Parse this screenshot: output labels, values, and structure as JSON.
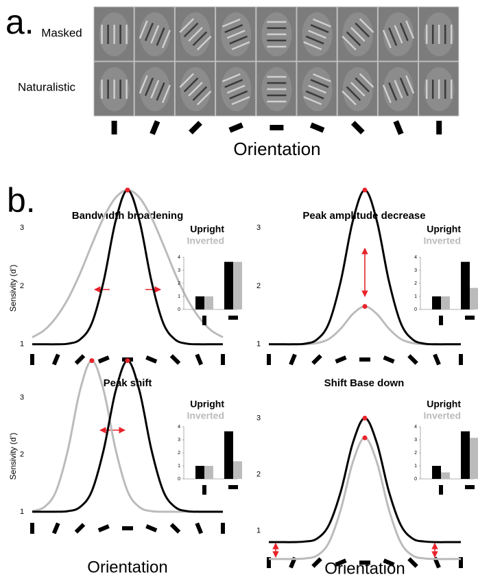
{
  "panel_a": {
    "label": "a.",
    "row_labels": [
      "Masked",
      "Naturalistic"
    ],
    "xlabel": "Orientation"
  },
  "panel_b": {
    "label": "b."
  },
  "chart_data": [
    {
      "type": "line",
      "title": "Bandwidth broadening",
      "ylabel": "Sensivity (d’)",
      "x": [
        0,
        11.25,
        22.5,
        33.75,
        45,
        56.25,
        67.5,
        78.75,
        90,
        101.25,
        112.5,
        123.75,
        135,
        146.25,
        157.5,
        168.75,
        180
      ],
      "xlim": [
        0,
        180
      ],
      "xticks": [
        0,
        22.5,
        45,
        67.5,
        90,
        112.5,
        135,
        157.5,
        180
      ],
      "ylim": [
        0.95,
        3.85
      ],
      "yticks": [
        1,
        2,
        3
      ],
      "series": [
        {
          "name": "Upright",
          "color": "#000000",
          "values": [
            1,
            1,
            1,
            1.01,
            1.08,
            1.36,
            2.09,
            3.12,
            3.65,
            3.12,
            2.09,
            1.36,
            1.08,
            1.01,
            1,
            1,
            1
          ]
        },
        {
          "name": "Inverted",
          "color": "#bbbbbb",
          "values": [
            1.12,
            1.24,
            1.46,
            1.78,
            2.21,
            2.71,
            3.18,
            3.52,
            3.65,
            3.52,
            3.18,
            2.71,
            2.21,
            1.78,
            1.46,
            1.24,
            1.12
          ]
        }
      ],
      "inset": {
        "type": "bar",
        "categories": [
          null,
          null
        ],
        "ylim": [
          0,
          4
        ],
        "yticks": [
          0,
          1,
          2,
          3,
          4
        ],
        "series": [
          {
            "name": "Upright",
            "color": "#000000",
            "values": [
              1,
              3.65
            ]
          },
          {
            "name": "Inverted",
            "color": "#bbbbbb",
            "values": [
              1,
              3.65
            ]
          }
        ]
      }
    },
    {
      "type": "line",
      "title": "Peak amplitude decrease",
      "x": [
        0,
        11.25,
        22.5,
        33.75,
        45,
        56.25,
        67.5,
        78.75,
        90,
        101.25,
        112.5,
        123.75,
        135,
        146.25,
        157.5,
        168.75,
        180
      ],
      "xlim": [
        0,
        180
      ],
      "xticks": [
        0,
        22.5,
        45,
        67.5,
        90,
        112.5,
        135,
        157.5,
        180
      ],
      "ylim": [
        0.95,
        3.85
      ],
      "yticks": [
        1,
        2,
        3
      ],
      "series": [
        {
          "name": "Upright",
          "color": "#000000",
          "values": [
            1,
            1,
            1,
            1.01,
            1.08,
            1.36,
            2.09,
            3.12,
            3.65,
            3.12,
            2.09,
            1.36,
            1.08,
            1.01,
            1,
            1,
            1
          ]
        },
        {
          "name": "Inverted",
          "color": "#bbbbbb",
          "values": [
            1,
            1,
            1,
            1,
            1.02,
            1.09,
            1.27,
            1.52,
            1.65,
            1.52,
            1.27,
            1.09,
            1.02,
            1,
            1,
            1,
            1
          ]
        }
      ],
      "inset": {
        "type": "bar",
        "categories": [
          null,
          null
        ],
        "ylim": [
          0,
          4
        ],
        "yticks": [
          0,
          1,
          2,
          3,
          4
        ],
        "series": [
          {
            "name": "Upright",
            "color": "#000000",
            "values": [
              1,
              3.65
            ]
          },
          {
            "name": "Inverted",
            "color": "#bbbbbb",
            "values": [
              1,
              1.65
            ]
          }
        ]
      }
    },
    {
      "type": "line",
      "title": "Peak shift",
      "ylabel": "Sensivity (d’)",
      "xlabel": "Orientation",
      "x": [
        0,
        11.25,
        22.5,
        33.75,
        45,
        56.25,
        67.5,
        78.75,
        90,
        101.25,
        112.5,
        123.75,
        135,
        146.25,
        157.5,
        168.75,
        180
      ],
      "xlim": [
        0,
        180
      ],
      "xticks": [
        0,
        22.5,
        45,
        67.5,
        90,
        112.5,
        135,
        157.5,
        180
      ],
      "ylim": [
        0.95,
        3.85
      ],
      "yticks": [
        1,
        2,
        3
      ],
      "series": [
        {
          "name": "Upright",
          "color": "#000000",
          "values": [
            1,
            1,
            1,
            1.01,
            1.08,
            1.36,
            2.09,
            3.12,
            3.65,
            3.12,
            2.09,
            1.36,
            1.08,
            1.01,
            1,
            1,
            1
          ]
        },
        {
          "name": "Inverted",
          "color": "#bbbbbb",
          "values": [
            1.01,
            1.08,
            1.36,
            2.09,
            3.12,
            3.65,
            3.12,
            2.09,
            1.36,
            1.08,
            1.01,
            1,
            1,
            1,
            1,
            1,
            1
          ]
        }
      ],
      "inset": {
        "type": "bar",
        "categories": [
          null,
          null
        ],
        "ylim": [
          0,
          4
        ],
        "yticks": [
          0,
          1,
          2,
          3,
          4
        ],
        "series": [
          {
            "name": "Upright",
            "color": "#000000",
            "values": [
              1,
              3.65
            ]
          },
          {
            "name": "Inverted",
            "color": "#bbbbbb",
            "values": [
              1,
              1.35
            ]
          }
        ]
      }
    },
    {
      "type": "line",
      "title": "Shift Base down",
      "xlabel": "Orientation",
      "x": [
        0,
        11.25,
        22.5,
        33.75,
        45,
        56.25,
        67.5,
        78.75,
        90,
        101.25,
        112.5,
        123.75,
        135,
        146.25,
        157.5,
        168.75,
        180
      ],
      "xlim": [
        0,
        180
      ],
      "xticks": [
        0,
        22.5,
        45,
        67.5,
        90,
        112.5,
        135,
        157.5,
        180
      ],
      "ylim": [
        0.4,
        3.2
      ],
      "yticks": [
        1,
        2,
        3
      ],
      "series": [
        {
          "name": "Upright",
          "color": "#000000",
          "values": [
            0.8,
            0.8,
            0.8,
            0.81,
            0.86,
            1.1,
            1.7,
            2.56,
            3.0,
            2.56,
            1.7,
            1.1,
            0.86,
            0.81,
            0.8,
            0.8,
            0.8
          ]
        },
        {
          "name": "Inverted",
          "color": "#bbbbbb",
          "values": [
            0.5,
            0.5,
            0.5,
            0.51,
            0.56,
            0.79,
            1.38,
            2.22,
            2.65,
            2.22,
            1.38,
            0.79,
            0.56,
            0.51,
            0.5,
            0.5,
            0.5
          ]
        }
      ],
      "inset": {
        "type": "bar",
        "categories": [
          null,
          null
        ],
        "ylim": [
          0,
          4
        ],
        "yticks": [
          0,
          1,
          2,
          3,
          4
        ],
        "series": [
          {
            "name": "Upright",
            "color": "#000000",
            "values": [
              1,
              3.65
            ]
          },
          {
            "name": "Inverted",
            "color": "#bbbbbb",
            "values": [
              0.5,
              3.15
            ]
          }
        ]
      }
    }
  ]
}
